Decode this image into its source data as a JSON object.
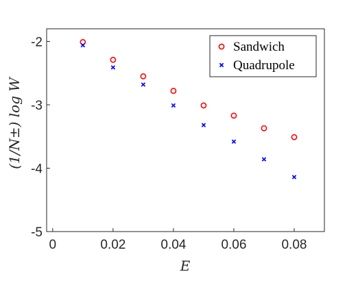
{
  "chart_data": {
    "type": "scatter",
    "title": "",
    "xlabel": "E",
    "ylabel": "(1/N±) log W",
    "xlim": [
      -0.002,
      0.09
    ],
    "ylim": [
      -5,
      -1.8
    ],
    "xticks": [
      0,
      0.02,
      0.04,
      0.06,
      0.08
    ],
    "xtick_labels": [
      "0",
      "0.02",
      "0.04",
      "0.06",
      "0.08"
    ],
    "yticks": [
      -5,
      -4,
      -3,
      -2
    ],
    "ytick_labels": [
      "-5",
      "-4",
      "-3",
      "-2"
    ],
    "grid": false,
    "legend_position": "top-right",
    "series": [
      {
        "name": "Sandwich",
        "marker": "circle",
        "color": "#ff0000",
        "x": [
          0.01,
          0.02,
          0.03,
          0.04,
          0.05,
          0.06,
          0.07,
          0.08
        ],
        "y": [
          -2.01,
          -2.29,
          -2.55,
          -2.78,
          -3.01,
          -3.17,
          -3.37,
          -3.51
        ]
      },
      {
        "name": "Quadrupole",
        "marker": "x",
        "color": "#0000ff",
        "x": [
          0.01,
          0.02,
          0.03,
          0.04,
          0.05,
          0.06,
          0.07,
          0.08
        ],
        "y": [
          -2.06,
          -2.41,
          -2.68,
          -3.01,
          -3.32,
          -3.58,
          -3.86,
          -4.14
        ]
      }
    ]
  }
}
